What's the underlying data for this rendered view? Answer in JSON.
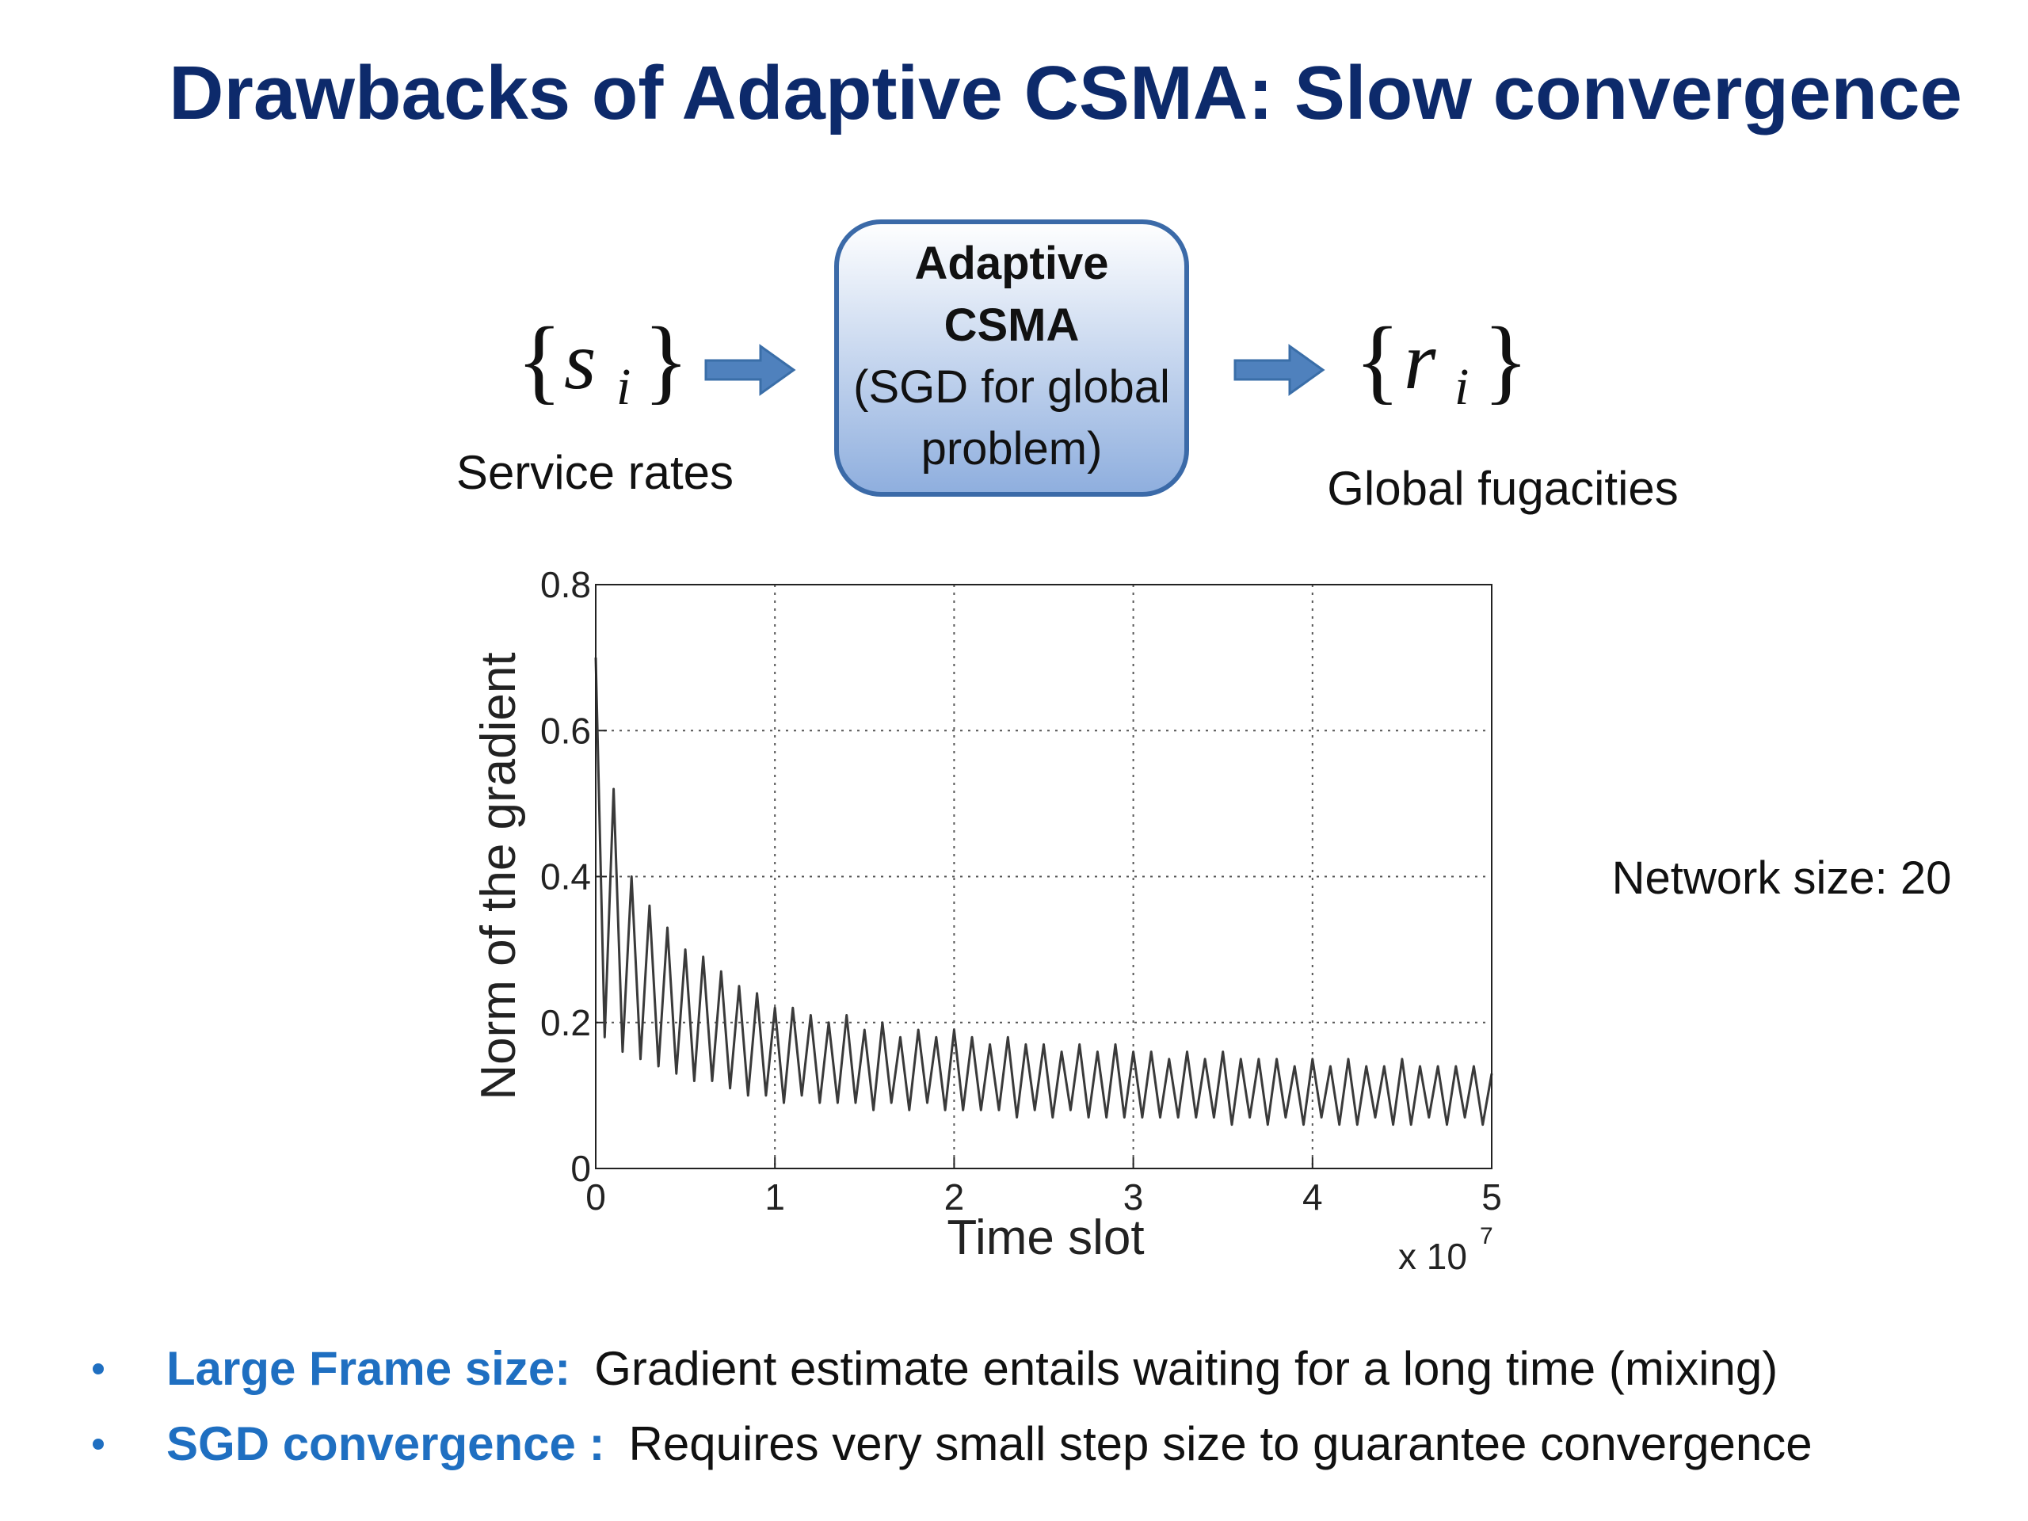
{
  "slide": {
    "title": "Drawbacks of Adaptive CSMA: Slow convergence",
    "note": "Network size: 20",
    "bullets": [
      {
        "label": "Large Frame size:",
        "text": "Gradient estimate entails waiting for a long time (mixing)"
      },
      {
        "label": "SGD convergence :",
        "text": "Requires very small step size to guarantee convergence"
      }
    ]
  },
  "diagram": {
    "input": {
      "brace_open": "{",
      "symbol": "s",
      "subscript": "i",
      "brace_close": "}",
      "label": "Service rates"
    },
    "box": {
      "bold_lines": [
        "Adaptive",
        "CSMA"
      ],
      "lines": [
        "(SGD for global",
        "problem)"
      ]
    },
    "output": {
      "brace_open": "{",
      "symbol": "r",
      "subscript": "i",
      "brace_close": "}",
      "label": "Global fugacities"
    }
  },
  "chart_data": {
    "type": "line",
    "xlabel": "Time slot",
    "ylabel": "Norm of the gradient",
    "x_multiplier": {
      "text": "x 10",
      "exponent": "7"
    },
    "xlim": [
      0,
      5
    ],
    "ylim": [
      0,
      0.8
    ],
    "xticks": [
      0,
      1,
      2,
      3,
      4,
      5
    ],
    "yticks": [
      0,
      0.2,
      0.4,
      0.6,
      0.8
    ],
    "grid": true,
    "x": [
      0,
      0.05,
      0.1,
      0.15,
      0.2,
      0.25,
      0.3,
      0.35,
      0.4,
      0.45,
      0.5,
      0.55,
      0.6,
      0.65,
      0.7,
      0.75,
      0.8,
      0.85,
      0.9,
      0.95,
      1,
      1.05,
      1.1,
      1.15,
      1.2,
      1.25,
      1.3,
      1.35,
      1.4,
      1.45,
      1.5,
      1.55,
      1.6,
      1.65,
      1.7,
      1.75,
      1.8,
      1.85,
      1.9,
      1.95,
      2,
      2.05,
      2.1,
      2.15,
      2.2,
      2.25,
      2.3,
      2.35,
      2.4,
      2.45,
      2.5,
      2.55,
      2.6,
      2.65,
      2.7,
      2.75,
      2.8,
      2.85,
      2.9,
      2.95,
      3,
      3.05,
      3.1,
      3.15,
      3.2,
      3.25,
      3.3,
      3.35,
      3.4,
      3.45,
      3.5,
      3.55,
      3.6,
      3.65,
      3.7,
      3.75,
      3.8,
      3.85,
      3.9,
      3.95,
      4,
      4.05,
      4.1,
      4.15,
      4.2,
      4.25,
      4.3,
      4.35,
      4.4,
      4.45,
      4.5,
      4.55,
      4.6,
      4.65,
      4.7,
      4.75,
      4.8,
      4.85,
      4.9,
      4.95,
      5
    ],
    "series": [
      {
        "color": "#3a3a3a",
        "values": [
          0.7,
          0.18,
          0.52,
          0.16,
          0.4,
          0.15,
          0.36,
          0.14,
          0.33,
          0.13,
          0.3,
          0.12,
          0.29,
          0.12,
          0.27,
          0.11,
          0.25,
          0.1,
          0.24,
          0.1,
          0.22,
          0.09,
          0.22,
          0.1,
          0.21,
          0.09,
          0.2,
          0.09,
          0.21,
          0.09,
          0.19,
          0.08,
          0.2,
          0.09,
          0.18,
          0.08,
          0.19,
          0.09,
          0.18,
          0.08,
          0.19,
          0.08,
          0.18,
          0.08,
          0.17,
          0.08,
          0.18,
          0.07,
          0.17,
          0.08,
          0.17,
          0.07,
          0.16,
          0.08,
          0.17,
          0.07,
          0.16,
          0.07,
          0.17,
          0.07,
          0.16,
          0.07,
          0.16,
          0.07,
          0.15,
          0.07,
          0.16,
          0.07,
          0.15,
          0.07,
          0.16,
          0.06,
          0.15,
          0.07,
          0.15,
          0.06,
          0.15,
          0.07,
          0.14,
          0.06,
          0.15,
          0.07,
          0.14,
          0.06,
          0.15,
          0.06,
          0.14,
          0.07,
          0.14,
          0.06,
          0.15,
          0.06,
          0.14,
          0.07,
          0.14,
          0.06,
          0.14,
          0.07,
          0.14,
          0.06,
          0.13
        ]
      }
    ]
  }
}
